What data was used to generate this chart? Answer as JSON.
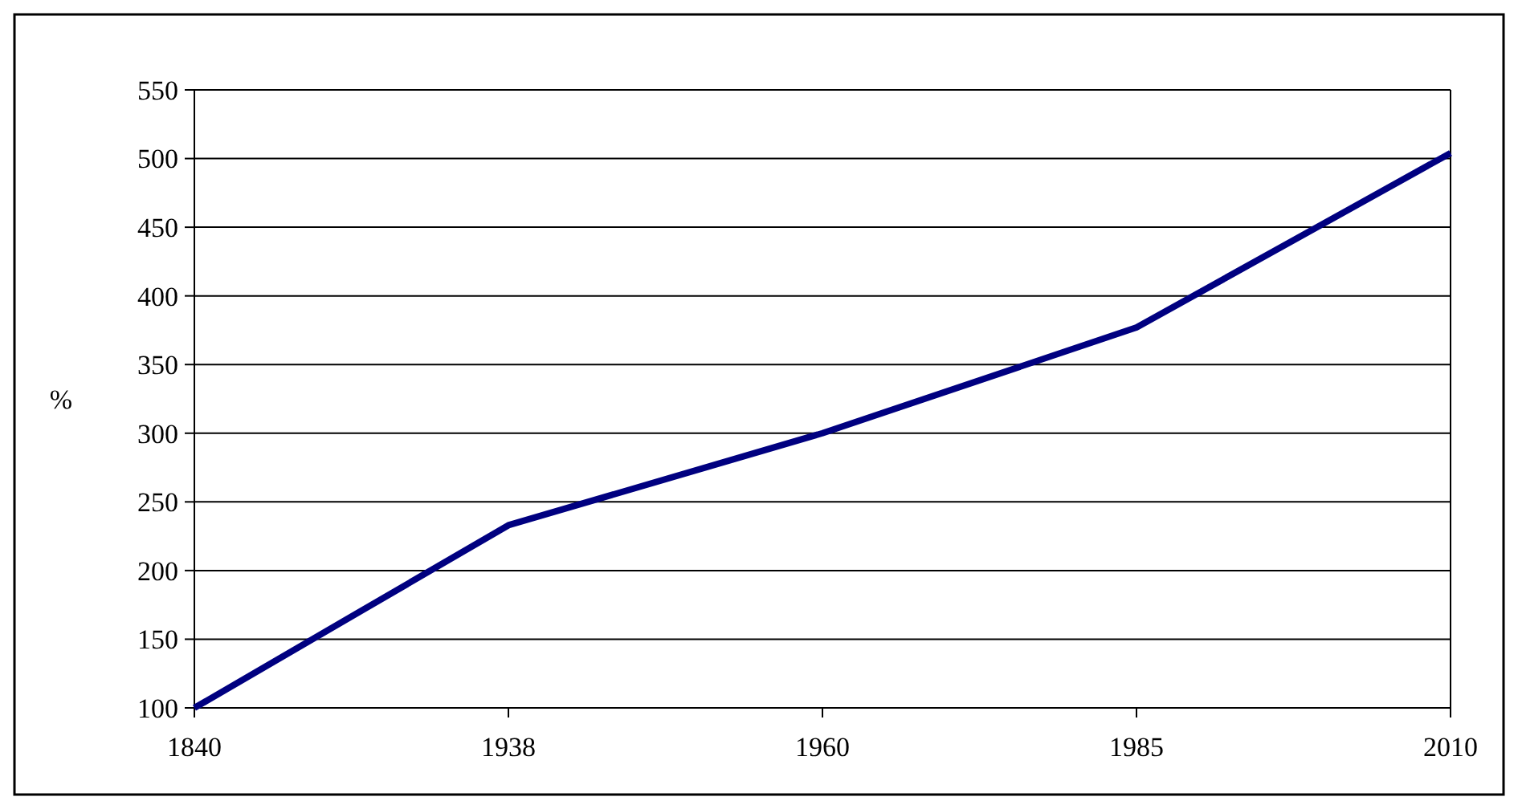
{
  "chart_data": {
    "type": "line",
    "ylabel": "%",
    "categories": [
      "1840",
      "1938",
      "1960",
      "1985",
      "2010"
    ],
    "series": [
      {
        "color": "#000080",
        "values": [
          100,
          233,
          300,
          377,
          504
        ]
      }
    ],
    "ylim": [
      100,
      550
    ],
    "yticks": [
      100,
      150,
      200,
      250,
      300,
      350,
      400,
      450,
      500,
      550
    ],
    "grid": "y",
    "marker": "none",
    "line_style": "solid"
  }
}
